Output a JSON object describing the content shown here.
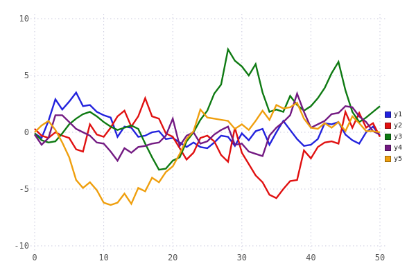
{
  "chart_data": {
    "type": "line",
    "title": "",
    "xlabel": "",
    "ylabel": "",
    "xlim": [
      0,
      50
    ],
    "ylim": [
      -10,
      10
    ],
    "x_ticks": [
      0,
      10,
      20,
      30,
      40,
      50
    ],
    "y_ticks": [
      10,
      5,
      0,
      -5,
      -10
    ],
    "grid": true,
    "grid_style": "dashed",
    "legend_position": "right",
    "x": [
      0,
      1,
      2,
      3,
      4,
      5,
      6,
      7,
      8,
      9,
      10,
      11,
      12,
      13,
      14,
      15,
      16,
      17,
      18,
      19,
      20,
      21,
      22,
      23,
      24,
      25,
      26,
      27,
      28,
      29,
      30,
      31,
      32,
      33,
      34,
      35,
      36,
      37,
      38,
      39,
      40,
      41,
      42,
      43,
      44,
      45,
      46,
      47,
      48,
      49,
      50
    ],
    "series": [
      {
        "name": "y1",
        "color": "#2222dd",
        "values": [
          -0.1,
          -0.5,
          1.0,
          2.9,
          2.0,
          2.7,
          3.5,
          2.3,
          2.4,
          1.8,
          1.5,
          1.3,
          -0.4,
          0.5,
          0.4,
          -0.4,
          -0.3,
          0.0,
          0.1,
          -0.6,
          -0.5,
          -0.9,
          -1.3,
          -0.9,
          -1.3,
          -1.4,
          -0.9,
          -0.3,
          -0.4,
          -1.2,
          -0.1,
          -0.7,
          0.1,
          0.3,
          -1.1,
          0.0,
          1.0,
          0.2,
          -0.6,
          -1.2,
          -1.1,
          -0.6,
          0.8,
          0.7,
          0.9,
          -0.2,
          -0.7,
          -1.0,
          0.0,
          0.5,
          -0.3
        ]
      },
      {
        "name": "y2",
        "color": "#e01010",
        "values": [
          0.3,
          -0.3,
          -0.5,
          0.0,
          -0.3,
          -0.5,
          -1.5,
          -1.7,
          0.7,
          -0.2,
          -0.4,
          0.4,
          1.4,
          1.9,
          0.5,
          1.4,
          3.0,
          1.4,
          1.2,
          -0.1,
          -0.4,
          -1.4,
          -2.4,
          -1.8,
          -0.5,
          -0.3,
          -0.8,
          -2.0,
          -2.6,
          0.4,
          -1.8,
          -2.8,
          -3.8,
          -4.4,
          -5.5,
          -5.8,
          -5.0,
          -4.3,
          -4.2,
          -1.6,
          -2.3,
          -1.3,
          -0.9,
          -0.8,
          -1.0,
          1.8,
          0.4,
          1.7,
          0.4,
          0.8,
          -0.4
        ]
      },
      {
        "name": "y3",
        "color": "#0e7a12",
        "values": [
          -0.1,
          -0.7,
          -0.9,
          -0.8,
          -0.1,
          0.7,
          1.2,
          1.6,
          1.8,
          1.4,
          0.9,
          0.5,
          0.2,
          0.4,
          0.6,
          0.3,
          -1.0,
          -2.2,
          -3.3,
          -3.2,
          -2.5,
          -2.2,
          -0.8,
          0.0,
          1.1,
          1.9,
          3.4,
          4.2,
          7.3,
          6.3,
          5.8,
          5.0,
          6.0,
          3.5,
          1.8,
          2.0,
          1.8,
          3.2,
          2.4,
          1.9,
          2.3,
          3.0,
          3.9,
          5.2,
          6.2,
          3.7,
          1.8,
          0.9,
          1.3,
          1.8,
          2.3
        ]
      },
      {
        "name": "y4",
        "color": "#731a82",
        "values": [
          -0.2,
          -1.1,
          -0.5,
          1.5,
          1.5,
          0.9,
          0.3,
          0.0,
          -0.3,
          -0.9,
          -1.0,
          -1.7,
          -2.5,
          -1.4,
          -1.8,
          -1.3,
          -1.2,
          -1.0,
          -0.9,
          -0.3,
          1.2,
          -1.2,
          -0.3,
          0.0,
          -1.0,
          -0.8,
          -0.2,
          0.2,
          0.5,
          -1.1,
          -1.0,
          -1.7,
          -1.9,
          -2.1,
          -0.3,
          0.4,
          0.9,
          1.5,
          3.4,
          1.8,
          0.4,
          0.7,
          1.0,
          1.6,
          1.7,
          2.3,
          2.2,
          1.4,
          0.9,
          0.1,
          -0.2
        ]
      },
      {
        "name": "y5",
        "color": "#ef9f0e",
        "values": [
          0.0,
          0.6,
          1.0,
          0.2,
          -0.9,
          -2.2,
          -4.2,
          -4.9,
          -4.4,
          -5.1,
          -6.2,
          -6.4,
          -6.2,
          -5.4,
          -6.3,
          -4.9,
          -5.2,
          -4.0,
          -4.4,
          -3.5,
          -3.0,
          -1.9,
          -0.6,
          0.1,
          2.0,
          1.3,
          1.2,
          1.1,
          1.0,
          0.3,
          0.7,
          0.2,
          1.0,
          1.9,
          1.1,
          2.4,
          2.1,
          2.2,
          2.6,
          1.2,
          0.4,
          0.3,
          0.8,
          0.4,
          0.9,
          0.1,
          1.4,
          0.8,
          0.1,
          0.1,
          0.0
        ]
      }
    ]
  },
  "styles": {
    "background": "#ffffff",
    "grid_color": "#c9c9de",
    "tick_label_color": "#555555",
    "legend_text_color": "#222222",
    "line_width": 2.4
  }
}
